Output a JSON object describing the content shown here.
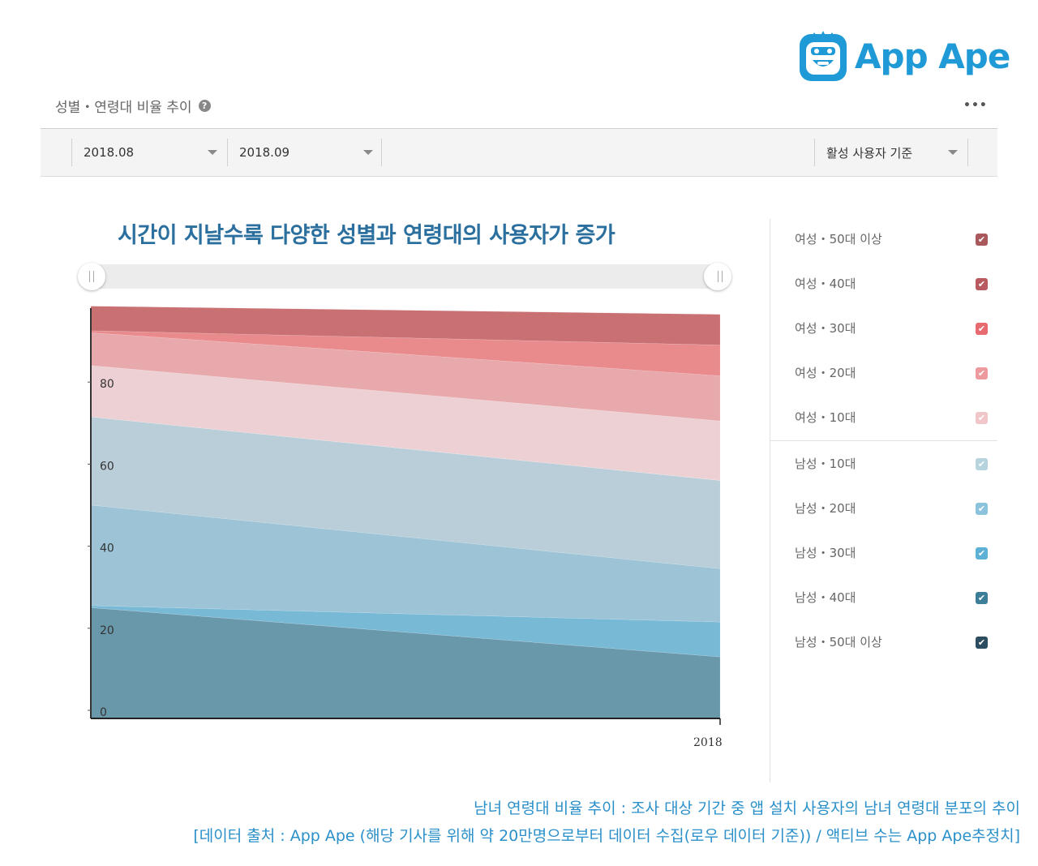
{
  "logo": {
    "text": "App Ape"
  },
  "panel": {
    "title": "성별・연령대 비율 추이",
    "help": "?",
    "more": "•••"
  },
  "toolbar": {
    "start_period": "2018.08",
    "end_period": "2018.09",
    "basis": "활성 사용자 기준"
  },
  "headline": "시간이 지날수록 다양한 성별과 연령대의 사용자가 증가",
  "footer": {
    "line1": "남녀 연령대 비율 추이 : 조사 대상 기간 중 앱 설치 사용자의 남녀 연령대 분포의 추이",
    "line2": "[데이터 출처 : App Ape (해당 기사를 위해 약 20만명으로부터 데이터 수집(로우 데이터 기준)) / 액티브 수는 App Ape추정치]"
  },
  "chart_data": {
    "type": "area",
    "stacked": true,
    "title": "",
    "xlabel": "",
    "ylabel": "",
    "x_tick_label": "2018",
    "ylim": [
      0,
      100
    ],
    "yticks": [
      0,
      20,
      40,
      60,
      80
    ],
    "x": [
      "2018.08",
      "2018.09"
    ],
    "series": [
      {
        "name": "남성・50대 이상",
        "color": "#6a98ab",
        "values": [
          27,
          15
        ]
      },
      {
        "name": "남성・40대",
        "color": "#78b9d6",
        "values": [
          0.5,
          8.5
        ]
      },
      {
        "name": "남성・30대",
        "color": "#9cc4d6",
        "values": [
          24.5,
          13
        ]
      },
      {
        "name": "남성・20대",
        "color": "#b9ced8",
        "values": [
          21.5,
          21.5
        ]
      },
      {
        "name": "남성・10대",
        "color": "#cfe0e8",
        "values": [
          0,
          0
        ]
      },
      {
        "name": "여성・10대",
        "color": "#ecd0d3",
        "values": [
          12.5,
          14.5
        ]
      },
      {
        "name": "여성・20대",
        "color": "#e8a9ac",
        "values": [
          8,
          11
        ]
      },
      {
        "name": "여성・30대",
        "color": "#e98a8d",
        "values": [
          0.5,
          7.5
        ]
      },
      {
        "name": "여성・40대",
        "color": "#c97073",
        "values": [
          6,
          7.5
        ]
      },
      {
        "name": "여성・50대 이상",
        "color": "#a9585c",
        "values": [
          0,
          0
        ]
      }
    ]
  },
  "legend": {
    "items": [
      {
        "label": "여성・50대 이상",
        "color": "#a9585c",
        "checked": true
      },
      {
        "label": "여성・40대",
        "color": "#b85a60",
        "checked": true
      },
      {
        "label": "여성・30대",
        "color": "#e66a70",
        "checked": true
      },
      {
        "label": "여성・20대",
        "color": "#ec9a9e",
        "checked": true
      },
      {
        "label": "여성・10대",
        "color": "#f1c6c8",
        "checked": true
      },
      {
        "label": "남성・10대",
        "color": "#b7d3de",
        "checked": true
      },
      {
        "label": "남성・20대",
        "color": "#8cc3dc",
        "checked": true
      },
      {
        "label": "남성・30대",
        "color": "#5eb1d6",
        "checked": true
      },
      {
        "label": "남성・40대",
        "color": "#3c7d97",
        "checked": true
      },
      {
        "label": "남성・50대 이상",
        "color": "#2c4c60",
        "checked": true
      }
    ],
    "check_glyph": "✔"
  }
}
